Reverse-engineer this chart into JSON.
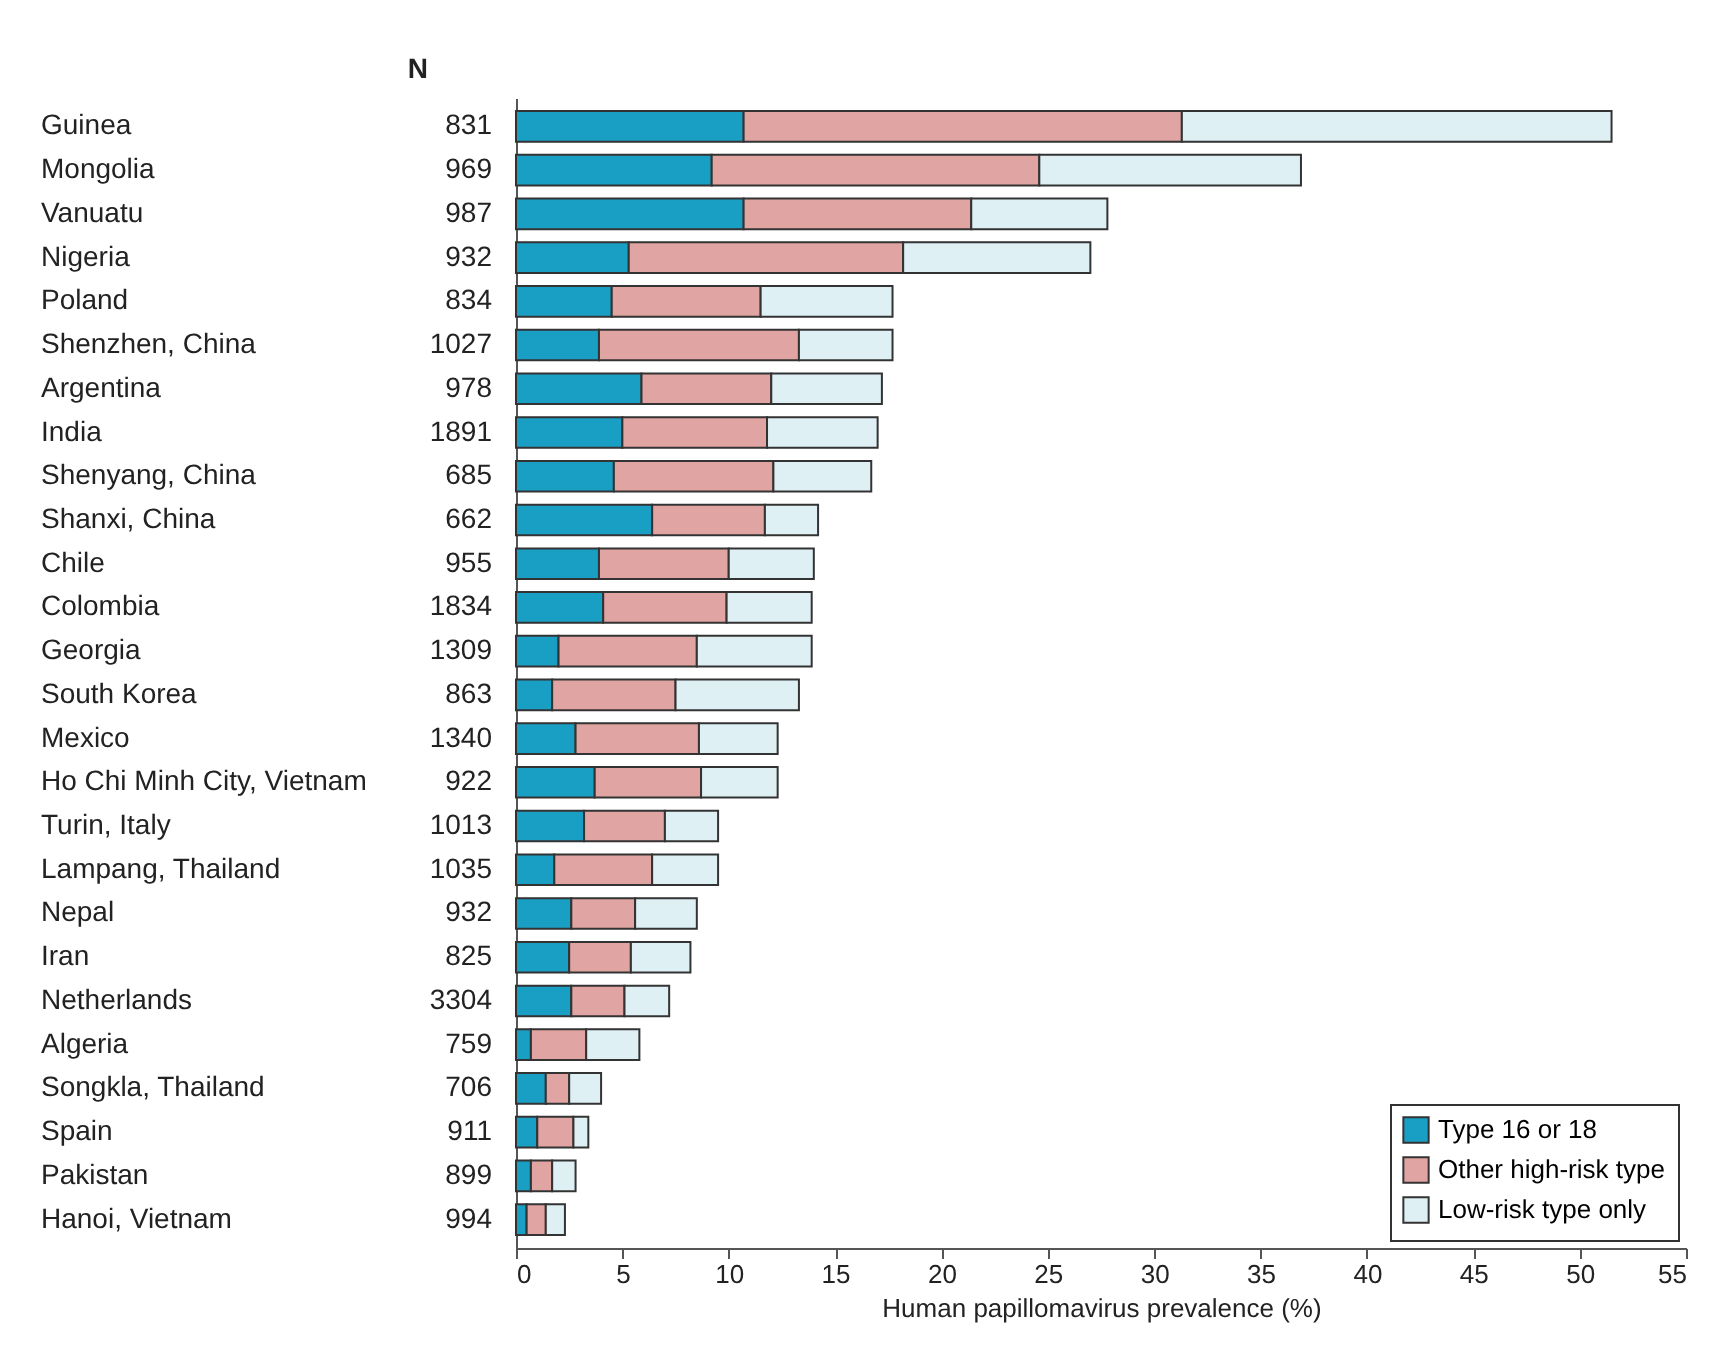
{
  "chart_data": {
    "type": "bar",
    "orientation": "horizontal",
    "stacked": true,
    "xlabel": "Human papillomavirus prevalence (%)",
    "categories": [
      "Guinea",
      "Mongolia",
      "Vanuatu",
      "Nigeria",
      "Poland",
      "Shenzhen, China",
      "Argentina",
      "India",
      "Shenyang, China",
      "Shanxi, China",
      "Chile",
      "Colombia",
      "Georgia",
      "South Korea",
      "Mexico",
      "Ho Chi Minh City, Vietnam",
      "Turin, Italy",
      "Lampang, Thailand",
      "Nepal",
      "Iran",
      "Netherlands",
      "Algeria",
      "Songkla, Thailand",
      "Spain",
      "Pakistan",
      "Hanoi, Vietnam"
    ],
    "series": [
      {
        "name": "Type 16 or 18",
        "color": "#1a9fc4",
        "values": [
          10.7,
          9.2,
          10.7,
          5.3,
          4.5,
          3.9,
          5.9,
          5.0,
          4.6,
          6.4,
          3.9,
          4.1,
          2.0,
          1.7,
          2.8,
          3.7,
          3.2,
          1.8,
          2.6,
          2.5,
          2.6,
          0.7,
          1.4,
          1.0,
          0.7,
          0.5
        ]
      },
      {
        "name": "Other high-risk type",
        "color": "#e0a4a2",
        "values": [
          20.6,
          15.4,
          10.7,
          12.9,
          7.0,
          9.4,
          6.1,
          6.8,
          7.5,
          5.3,
          6.1,
          5.8,
          6.5,
          5.8,
          5.8,
          5.0,
          3.8,
          4.6,
          3.0,
          2.9,
          2.5,
          2.6,
          1.1,
          1.7,
          1.0,
          0.9
        ]
      },
      {
        "name": "Low-risk type only",
        "color": "#dff0f5",
        "values": [
          20.2,
          12.3,
          6.4,
          8.8,
          6.2,
          4.4,
          5.2,
          5.2,
          4.6,
          2.5,
          4.0,
          4.0,
          5.4,
          5.8,
          3.7,
          3.6,
          2.5,
          3.1,
          2.9,
          2.8,
          2.1,
          2.5,
          1.5,
          0.7,
          1.1,
          0.9
        ]
      }
    ],
    "xlim": [
      0,
      55
    ],
    "xticks": [
      0,
      5,
      10,
      15,
      20,
      25,
      30,
      35,
      40,
      45,
      50,
      55
    ],
    "grid": false,
    "legend": "bottom right",
    "annotations": [
      "N",
      "831",
      "969",
      "987",
      "932",
      "834",
      "1027",
      "978",
      "1891",
      "685",
      "662",
      "955",
      "1834",
      "1309",
      "863",
      "1340",
      "922",
      "1013",
      "1035",
      "932",
      "825",
      "3304",
      "759",
      "706",
      "911",
      "899",
      "994"
    ]
  }
}
